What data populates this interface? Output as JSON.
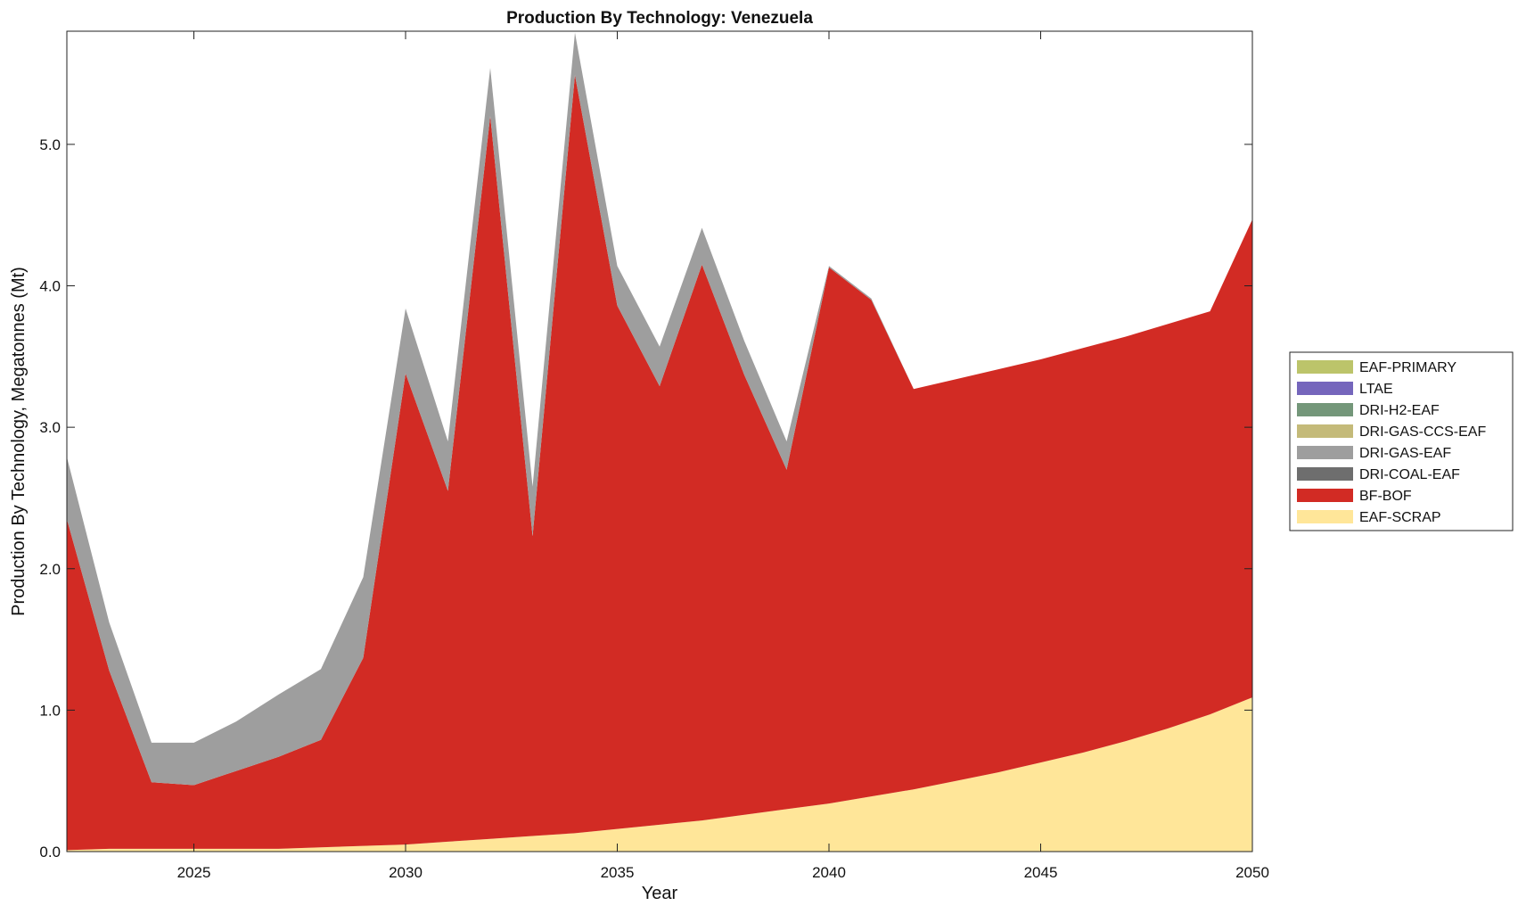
{
  "chart_data": {
    "type": "area",
    "stacked": true,
    "title": "Production By Technology: Venezuela",
    "xlabel": "Year",
    "ylabel": "Production By Technology, Megatonnes (Mt)",
    "xlim": [
      2022,
      2050
    ],
    "ylim": [
      0,
      5.8
    ],
    "xticks": [
      "2025",
      "2030",
      "2035",
      "2040",
      "2045",
      "2050"
    ],
    "yticks": [
      "0.0",
      "1.0",
      "2.0",
      "3.0",
      "4.0",
      "5.0"
    ],
    "grid": false,
    "legend_position": "right",
    "x": [
      2022,
      2023,
      2024,
      2025,
      2026,
      2027,
      2028,
      2029,
      2030,
      2031,
      2032,
      2033,
      2034,
      2035,
      2036,
      2037,
      2038,
      2039,
      2040,
      2041,
      2042,
      2043,
      2044,
      2045,
      2046,
      2047,
      2048,
      2049,
      2050
    ],
    "series": [
      {
        "name": "EAF-SCRAP",
        "color": "#FFE699",
        "values": [
          0.01,
          0.02,
          0.02,
          0.02,
          0.02,
          0.02,
          0.03,
          0.04,
          0.05,
          0.07,
          0.09,
          0.11,
          0.13,
          0.16,
          0.19,
          0.22,
          0.26,
          0.3,
          0.34,
          0.39,
          0.44,
          0.5,
          0.56,
          0.63,
          0.7,
          0.78,
          0.87,
          0.97,
          1.09
        ]
      },
      {
        "name": "BF-BOF",
        "color": "#D22B24",
        "values": [
          2.34,
          1.26,
          0.47,
          0.45,
          0.55,
          0.65,
          0.76,
          1.33,
          3.33,
          2.48,
          5.11,
          2.12,
          5.36,
          3.7,
          3.1,
          3.93,
          3.11,
          2.4,
          3.79,
          3.51,
          2.83,
          2.84,
          2.85,
          2.85,
          2.86,
          2.86,
          2.86,
          2.85,
          3.38
        ]
      },
      {
        "name": "DRI-COAL-EAF",
        "color": "#6E6E6E",
        "values": [
          0,
          0,
          0,
          0,
          0,
          0,
          0,
          0,
          0,
          0,
          0,
          0,
          0,
          0,
          0,
          0,
          0,
          0,
          0,
          0,
          0,
          0,
          0,
          0,
          0,
          0,
          0,
          0,
          0
        ]
      },
      {
        "name": "DRI-GAS-EAF",
        "color": "#9E9E9E",
        "values": [
          0.44,
          0.34,
          0.28,
          0.3,
          0.35,
          0.44,
          0.5,
          0.57,
          0.46,
          0.35,
          0.34,
          0.35,
          0.3,
          0.28,
          0.28,
          0.26,
          0.24,
          0.2,
          0.01,
          0.01,
          0,
          0,
          0,
          0,
          0,
          0,
          0,
          0,
          0
        ]
      },
      {
        "name": "DRI-GAS-CCS-EAF",
        "color": "#C4BA79",
        "values": [
          0,
          0,
          0,
          0,
          0,
          0,
          0,
          0,
          0,
          0,
          0,
          0,
          0,
          0,
          0,
          0,
          0,
          0,
          0,
          0,
          0,
          0,
          0,
          0,
          0,
          0,
          0,
          0,
          0
        ]
      },
      {
        "name": "DRI-H2-EAF",
        "color": "#74977A",
        "values": [
          0,
          0,
          0,
          0,
          0,
          0,
          0,
          0,
          0,
          0,
          0,
          0,
          0,
          0,
          0,
          0,
          0,
          0,
          0,
          0,
          0,
          0,
          0,
          0,
          0,
          0,
          0,
          0,
          0
        ]
      },
      {
        "name": "LTAE",
        "color": "#7566BC",
        "values": [
          0,
          0,
          0,
          0,
          0,
          0,
          0,
          0,
          0,
          0,
          0,
          0,
          0,
          0,
          0,
          0,
          0,
          0,
          0,
          0,
          0,
          0,
          0,
          0,
          0,
          0,
          0,
          0,
          0
        ]
      },
      {
        "name": "EAF-PRIMARY",
        "color": "#BCC46A",
        "values": [
          0,
          0,
          0,
          0,
          0,
          0,
          0,
          0,
          0,
          0,
          0,
          0,
          0,
          0,
          0,
          0,
          0,
          0,
          0,
          0,
          0,
          0,
          0,
          0,
          0,
          0,
          0,
          0,
          0
        ]
      }
    ],
    "legend_order": [
      "EAF-PRIMARY",
      "LTAE",
      "DRI-H2-EAF",
      "DRI-GAS-CCS-EAF",
      "DRI-GAS-EAF",
      "DRI-COAL-EAF",
      "BF-BOF",
      "EAF-SCRAP"
    ]
  }
}
